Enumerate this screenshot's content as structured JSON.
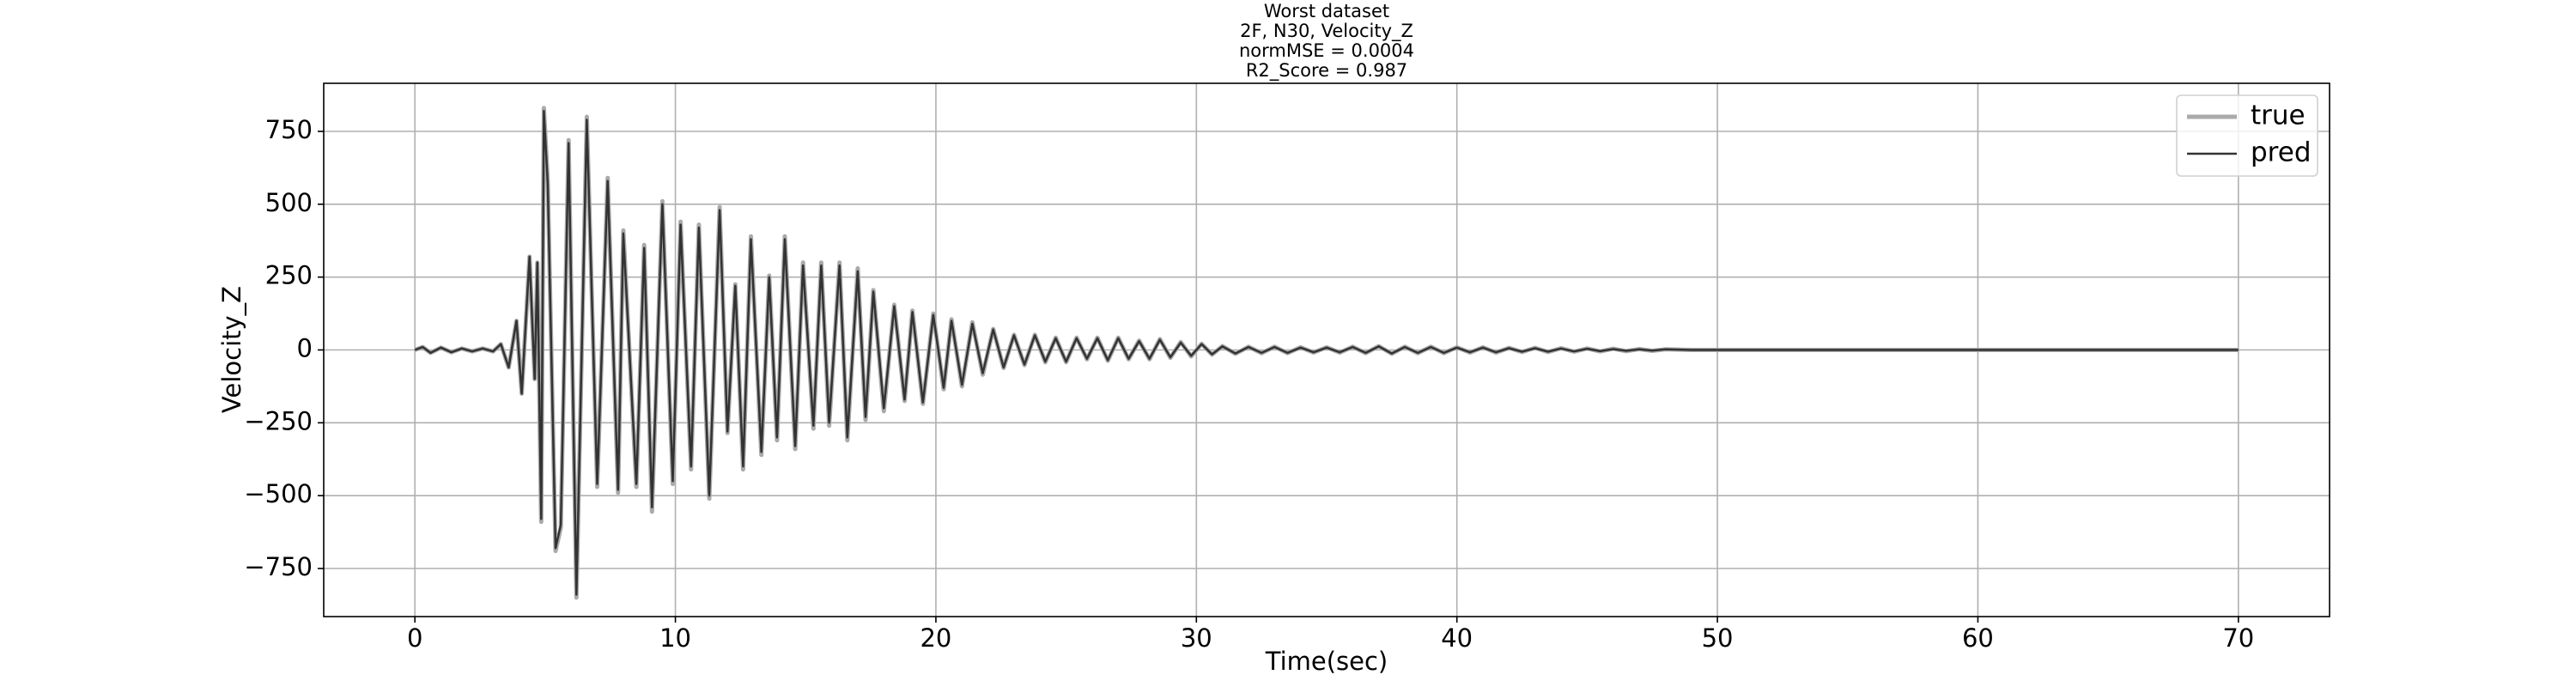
{
  "chart_data": {
    "type": "line",
    "title_lines": [
      "Worst dataset",
      "2F, N30, Velocity_Z",
      "normMSE = 0.0004",
      " R2_Score = 0.987"
    ],
    "xlabel": "Time(sec)",
    "ylabel": "Velocity_Z",
    "xlim": [
      -3.5,
      73.5
    ],
    "ylim": [
      -915,
      915
    ],
    "xticks": [
      0,
      10,
      20,
      30,
      40,
      50,
      60,
      70
    ],
    "yticks": [
      {
        "value": -750,
        "label": "−750"
      },
      {
        "value": -500,
        "label": "−500"
      },
      {
        "value": -250,
        "label": "−250"
      },
      0,
      250,
      500,
      750
    ],
    "grid": true,
    "legend": "upper right",
    "x": [
      0,
      0.3,
      0.6,
      1.0,
      1.4,
      1.8,
      2.2,
      2.6,
      3.0,
      3.3,
      3.6,
      3.9,
      4.1,
      4.4,
      4.6,
      4.7,
      4.85,
      4.95,
      5.1,
      5.4,
      5.6,
      5.9,
      6.2,
      6.6,
      7.0,
      7.4,
      7.8,
      8.0,
      8.5,
      8.8,
      9.1,
      9.5,
      9.9,
      10.2,
      10.6,
      10.9,
      11.3,
      11.7,
      12.0,
      12.3,
      12.6,
      12.9,
      13.3,
      13.6,
      13.9,
      14.2,
      14.6,
      14.9,
      15.3,
      15.6,
      15.9,
      16.3,
      16.6,
      17.0,
      17.3,
      17.6,
      18.0,
      18.4,
      18.8,
      19.1,
      19.5,
      19.9,
      20.3,
      20.6,
      21.0,
      21.4,
      21.8,
      22.2,
      22.6,
      23.0,
      23.4,
      23.8,
      24.2,
      24.6,
      25.0,
      25.4,
      25.8,
      26.2,
      26.6,
      27.0,
      27.4,
      27.8,
      28.2,
      28.6,
      29.0,
      29.4,
      29.8,
      30.2,
      30.6,
      31.0,
      31.5,
      32,
      32.5,
      33,
      33.5,
      34,
      34.5,
      35,
      35.5,
      36,
      36.5,
      37,
      37.5,
      38,
      38.5,
      39,
      39.5,
      40,
      40.5,
      41,
      41.5,
      42,
      42.5,
      43,
      43.5,
      44,
      44.5,
      45,
      45.5,
      46,
      46.5,
      47,
      47.5,
      48,
      49,
      55,
      60,
      70
    ],
    "series": [
      {
        "name": "true",
        "color": "#aaaaaa",
        "width": 5,
        "values": [
          0,
          10,
          -10,
          8,
          -8,
          5,
          -5,
          5,
          -5,
          20,
          -60,
          100,
          -150,
          320,
          -100,
          300,
          -590,
          830,
          580,
          -690,
          -610,
          720,
          -850,
          800,
          -470,
          590,
          -490,
          410,
          -470,
          360,
          -555,
          510,
          -460,
          440,
          -410,
          430,
          -510,
          490,
          -285,
          225,
          -410,
          390,
          -360,
          255,
          -310,
          390,
          -340,
          300,
          -270,
          300,
          -260,
          300,
          -310,
          280,
          -240,
          205,
          -210,
          155,
          -175,
          135,
          -185,
          125,
          -135,
          105,
          -125,
          95,
          -85,
          72,
          -62,
          52,
          -52,
          52,
          -42,
          42,
          -42,
          42,
          -32,
          42,
          -37,
          42,
          -32,
          32,
          -32,
          37,
          -27,
          27,
          -22,
          21,
          -16,
          13,
          -13,
          11,
          -11,
          11,
          -11,
          9,
          -9,
          9,
          -9,
          11,
          -11,
          13,
          -13,
          11,
          -11,
          11,
          -11,
          9,
          -9,
          9,
          -9,
          7,
          -7,
          7,
          -7,
          6,
          -6,
          5,
          -5,
          4,
          -4,
          3,
          -3,
          2,
          0,
          0,
          0,
          0
        ]
      },
      {
        "name": "pred",
        "color": "#333333",
        "width": 2.5,
        "values": [
          0,
          10,
          -10,
          8,
          -8,
          5,
          -5,
          5,
          -5,
          20,
          -60,
          100,
          -150,
          320,
          -100,
          300,
          -580,
          820,
          570,
          -680,
          -600,
          710,
          -840,
          790,
          -460,
          580,
          -480,
          400,
          -460,
          350,
          -540,
          500,
          -450,
          430,
          -400,
          420,
          -500,
          480,
          -280,
          220,
          -400,
          380,
          -350,
          250,
          -300,
          380,
          -330,
          290,
          -260,
          290,
          -250,
          290,
          -300,
          270,
          -230,
          200,
          -200,
          150,
          -170,
          130,
          -180,
          120,
          -130,
          100,
          -120,
          90,
          -80,
          70,
          -60,
          50,
          -50,
          50,
          -40,
          40,
          -40,
          40,
          -30,
          40,
          -35,
          40,
          -30,
          30,
          -30,
          35,
          -25,
          25,
          -20,
          20,
          -15,
          12,
          -12,
          10,
          -10,
          10,
          -10,
          8,
          -8,
          8,
          -8,
          10,
          -10,
          12,
          -12,
          10,
          -10,
          10,
          -10,
          8,
          -8,
          8,
          -8,
          6,
          -6,
          6,
          -6,
          5,
          -5,
          4,
          -4,
          3,
          -3,
          2,
          -2,
          2,
          0,
          0,
          0,
          0
        ]
      }
    ]
  }
}
